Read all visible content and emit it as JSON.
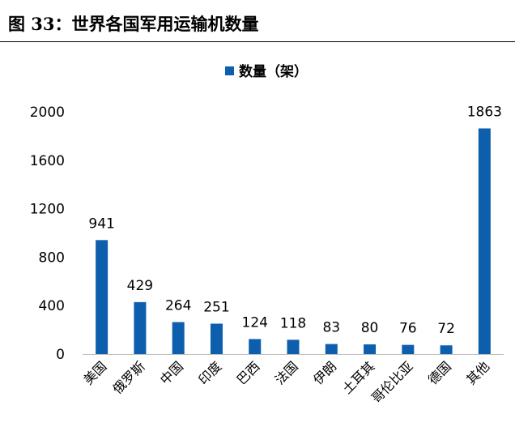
{
  "header": {
    "title": "图 33：世界各国军用运输机数量"
  },
  "chart_data": {
    "type": "bar",
    "categories": [
      "美国",
      "俄罗斯",
      "中国",
      "印度",
      "巴西",
      "法国",
      "伊朗",
      "土耳其",
      "哥伦比亚",
      "德国",
      "其他"
    ],
    "series": [
      {
        "name": "数量（架）",
        "values": [
          941,
          429,
          264,
          251,
          124,
          118,
          83,
          80,
          76,
          72,
          1863
        ],
        "color": "#0d5ead"
      }
    ],
    "y_ticks": [
      "0",
      "400",
      "800",
      "1200",
      "1600",
      "2000"
    ],
    "ylim": [
      0,
      2000
    ],
    "grid": false,
    "legend": "top-center"
  }
}
